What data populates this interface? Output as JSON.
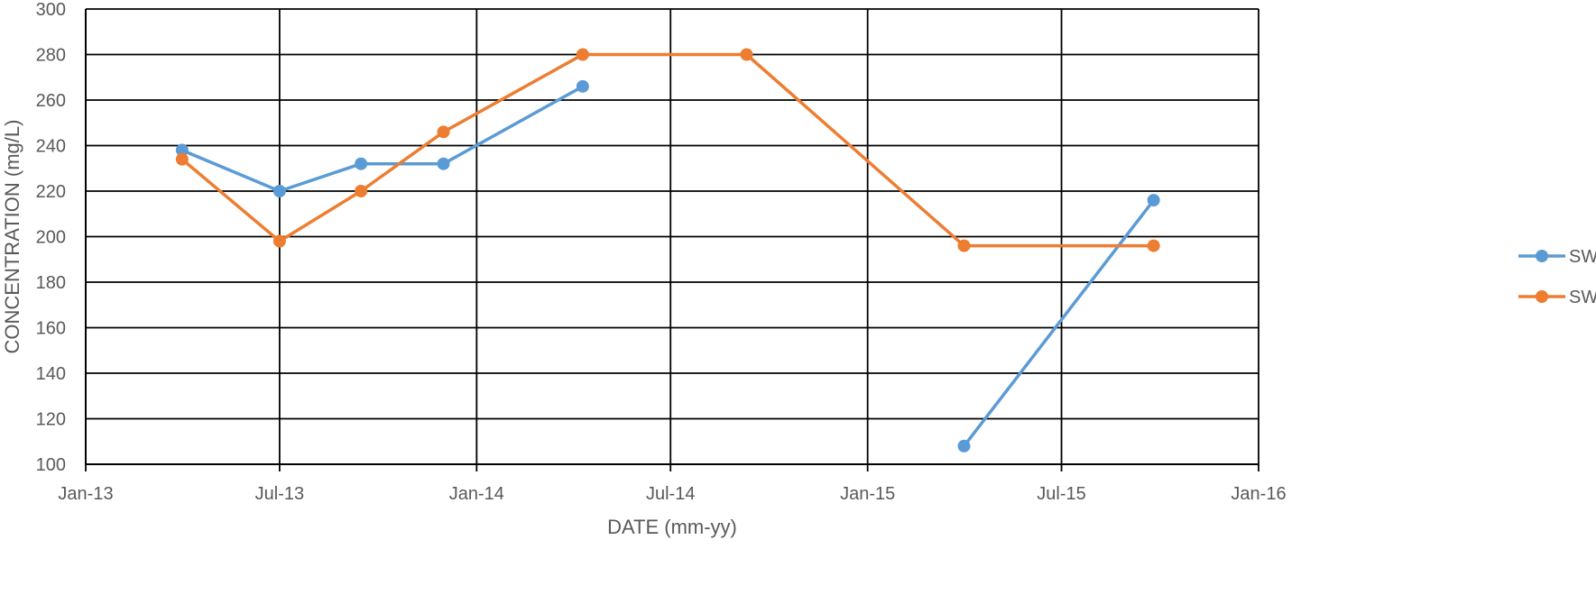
{
  "chart_data": {
    "type": "line",
    "xlabel": "DATE (mm-yy)",
    "ylabel": "CONCENTRATION (mg/L)",
    "ylim": [
      100,
      300
    ],
    "ytick_step": 20,
    "xlim": [
      "2013-01-01",
      "2016-01-01"
    ],
    "xticks": [
      {
        "date": "2013-01-01",
        "label": "Jan-13"
      },
      {
        "date": "2013-07-01",
        "label": "Jul-13"
      },
      {
        "date": "2014-01-01",
        "label": "Jan-14"
      },
      {
        "date": "2014-07-01",
        "label": "Jul-14"
      },
      {
        "date": "2015-01-01",
        "label": "Jan-15"
      },
      {
        "date": "2015-07-01",
        "label": "Jul-15"
      },
      {
        "date": "2016-01-01",
        "label": "Jan-16"
      }
    ],
    "grid": true,
    "legend_position": "right",
    "series": [
      {
        "name": "SWB",
        "color": "#5B9BD5",
        "segments": [
          [
            {
              "x": "2013-04-01",
              "y": 238
            },
            {
              "x": "2013-07-01",
              "y": 220
            },
            {
              "x": "2013-09-15",
              "y": 232
            },
            {
              "x": "2013-12-01",
              "y": 232
            },
            {
              "x": "2014-04-10",
              "y": 266
            }
          ],
          [
            {
              "x": "2015-04-01",
              "y": 108
            },
            {
              "x": "2015-09-25",
              "y": 216
            }
          ]
        ]
      },
      {
        "name": "SWC",
        "color": "#ED7D31",
        "segments": [
          [
            {
              "x": "2013-04-01",
              "y": 234
            },
            {
              "x": "2013-07-01",
              "y": 198
            },
            {
              "x": "2013-09-15",
              "y": 220
            },
            {
              "x": "2013-12-01",
              "y": 246
            },
            {
              "x": "2014-04-10",
              "y": 280
            },
            {
              "x": "2014-09-10",
              "y": 280
            },
            {
              "x": "2015-04-01",
              "y": 196
            },
            {
              "x": "2015-09-25",
              "y": 196
            }
          ]
        ]
      }
    ]
  }
}
